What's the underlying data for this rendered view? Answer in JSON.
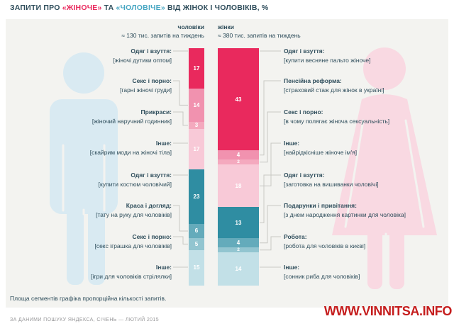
{
  "title": {
    "prefix": "ЗАПИТИ ПРО ",
    "feminine_keyword": "«ЖІНОЧЕ»",
    "middle": " ТА ",
    "masculine_keyword": "«ЧОЛОВІЧЕ»",
    "suffix": " ВІД ЖІНОК І ЧОЛОВІКІВ, %"
  },
  "colors": {
    "panel_bg": "#f3f3f0",
    "text_dark": "#2e4d5b",
    "feminine_accent": "#e9295d",
    "masculine_accent": "#46a6c2",
    "connector": "#c8c8c3",
    "male_silhouette": "#d9eaf2",
    "female_silhouette": "#f9d9e2",
    "watermark_red": "#c51d1d"
  },
  "chart_data": {
    "type": "bar",
    "variant": "stacked-proportional-columns",
    "unit": "%",
    "note": "Площа сегментів графіка пропорційна кількості запитів.",
    "palette": {
      "feminine": [
        "#e9295d",
        "#f192af",
        "#f4a9be",
        "#f8c9d7"
      ],
      "masculine": [
        "#2f8da2",
        "#64abbb",
        "#92c5d0",
        "#c2e0e7"
      ]
    },
    "columns": [
      {
        "id": "men",
        "header": "чоловіки",
        "volume": "≈ 130 тис. запитів на тиждень",
        "segments": [
          {
            "category": "Одяг і взуття:",
            "query": "[жіночі дутики оптом]",
            "value": 17,
            "group": "feminine"
          },
          {
            "category": "Секс і порно:",
            "query": "[гарні жіночі груди]",
            "value": 14,
            "group": "feminine"
          },
          {
            "category": "Прикраси:",
            "query": "[жіночий наручний годинник]",
            "value": 3,
            "group": "feminine"
          },
          {
            "category": "Інше:",
            "query": "[скайрим моди на жіночі тіла]",
            "value": 17,
            "group": "feminine"
          },
          {
            "category": "Одяг і взуття:",
            "query": "[купити костюм чоловічий]",
            "value": 23,
            "group": "masculine"
          },
          {
            "category": "Краса і догляд:",
            "query": "[тату на руку для чоловіків]",
            "value": 6,
            "group": "masculine"
          },
          {
            "category": "Секс і порно:",
            "query": "[секс іграшка для чоловіків]",
            "value": 5,
            "group": "masculine"
          },
          {
            "category": "Інше:",
            "query": "[ігри для чоловіків стрілялки]",
            "value": 15,
            "group": "masculine"
          }
        ]
      },
      {
        "id": "women",
        "header": "жінки",
        "volume": "≈ 380 тис. запитів на тиждень",
        "segments": [
          {
            "category": "Одяг і взуття:",
            "query": "[купити весняне пальто жіноче]",
            "value": 43,
            "group": "feminine"
          },
          {
            "category": "Пенсійна реформа:",
            "query": "[страховий стаж для жінок в україні]",
            "value": 4,
            "group": "feminine"
          },
          {
            "category": "Секс і порно:",
            "query": "[в чому полягає жіноча сексуальність]",
            "value": 2,
            "group": "feminine"
          },
          {
            "category": "Інше:",
            "query": "[найрідкісніше жіноче ім'я]",
            "value": 18,
            "group": "feminine"
          },
          {
            "category": "Одяг і взуття:",
            "query": "[заготовка на вишиванки чоловічі]",
            "value": 13,
            "group": "masculine"
          },
          {
            "category": "Подарунки і привітання:",
            "query": "[з днем народження картинки для чоловіка]",
            "value": 4,
            "group": "masculine"
          },
          {
            "category": "Робота:",
            "query": "[робота для чоловіків в києві]",
            "value": 2,
            "group": "masculine"
          },
          {
            "category": "Інше:",
            "query": "[сонник риба для чоловіків]",
            "value": 14,
            "group": "masculine"
          }
        ]
      }
    ]
  },
  "footer": {
    "source": "ЗА ДАНИМИ ПОШУКУ ЯНДЕКСА, СІЧЕНЬ — ЛЮТИЙ 2015",
    "watermark": "WWW.VINNITSA.INFO"
  }
}
